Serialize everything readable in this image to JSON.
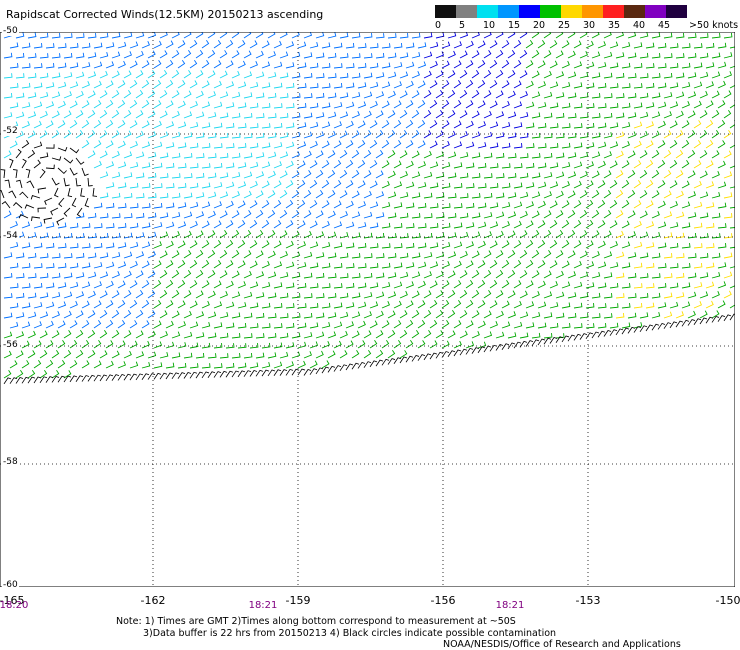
{
  "title": "Rapidscat Corrected Winds(12.5KM) 20150213 ascending",
  "colorbar": {
    "labels": [
      "0",
      "5",
      "10",
      "15",
      "20",
      "25",
      "30",
      "35",
      "40",
      "45",
      ">50 knots"
    ],
    "colors": [
      "#101010",
      "#808080",
      "#00e0f0",
      "#0096ff",
      "#0000ff",
      "#00c000",
      "#ffd800",
      "#ff9600",
      "#ff2020",
      "#5a2810",
      "#8000c0",
      "#200040"
    ]
  },
  "map": {
    "lat_labels": [
      "-50",
      "-52",
      "-54",
      "-56",
      "-58",
      "-60"
    ],
    "lon_labels": [
      "-165",
      "-162",
      "-159",
      "-156",
      "-153",
      "-150"
    ],
    "times": [
      "18:20",
      "18:21",
      "18:21"
    ],
    "swath_colors": {
      "calm": "#000000",
      "light": "#20d8f0",
      "moderate": "#0070ff",
      "fresh": "#0000e0",
      "strong": "#00a800",
      "strong2": "#20e020",
      "gale": "#ffe000"
    }
  },
  "notes": {
    "line1": "Note: 1) Times are GMT 2)Times along bottom correspond to measurement at ~50S",
    "line2": "3)Data buffer is 22 hrs from 20150213 4) Black circles indicate possible contamination",
    "credit": "NOAA/NESDIS/Office of Research and Applications"
  }
}
